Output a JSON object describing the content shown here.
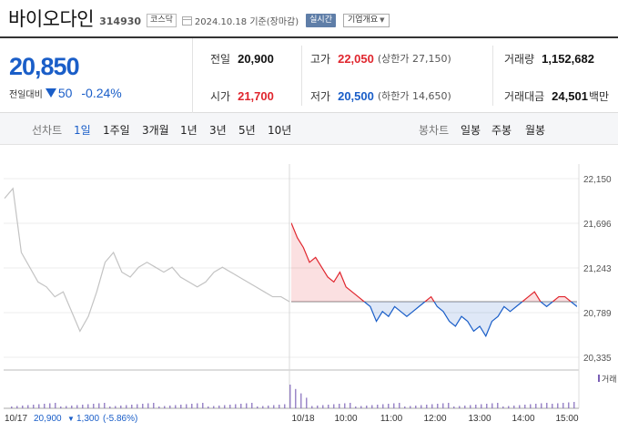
{
  "header": {
    "name": "바이오다인",
    "code": "314930",
    "market_tag": "코스닥",
    "date_text": "2024.10.18 기준(장마감)",
    "realtime_label": "실시간",
    "company_label": "기업개요"
  },
  "summary": {
    "price": "20,850",
    "change_label": "전일대비",
    "change_value": "50",
    "change_pct": "-0.24%",
    "prev_label": "전일",
    "prev_value": "20,900",
    "high_label": "고가",
    "high_value": "22,050",
    "upper_limit": "(상한가 27,150)",
    "volume_label": "거래량",
    "volume_value": "1,152,682",
    "open_label": "시가",
    "open_value": "21,700",
    "low_label": "저가",
    "low_value": "20,500",
    "lower_limit": "(하한가 14,650)",
    "amount_label": "거래대금",
    "amount_value": "24,501",
    "amount_unit": "백만"
  },
  "line_chart_tabs": {
    "label": "선차트",
    "items": [
      "1일",
      "1주일",
      "3개월",
      "1년",
      "3년",
      "5년",
      "10년"
    ],
    "active": "1일"
  },
  "candle_chart_tabs": {
    "label": "봉차트",
    "items": [
      "일봉",
      "주봉",
      "월봉"
    ]
  },
  "chart_data": {
    "type": "line",
    "y_ticks": [
      "22,150",
      "21,696",
      "21,243",
      "20,789",
      "20,335"
    ],
    "ylim": [
      20335,
      22150
    ],
    "baseline": 20900,
    "x_ticks": [
      "10/18",
      "10:00",
      "11:00",
      "12:00",
      "13:00",
      "14:00",
      "15:00"
    ],
    "start_label": "10/17",
    "prev_close_text": "20,900",
    "prev_change_value": "1,300",
    "prev_change_pct": "(-5.86%)",
    "volume_legend": "거래",
    "colors": {
      "up": "#e0262e",
      "down": "#1a5ec8",
      "prev_day": "#c3c3c3",
      "volume": "#7a5fb5"
    },
    "series": [
      {
        "values": [
          21950,
          22050,
          21400,
          21250,
          21100,
          21050,
          20950,
          21000,
          20800,
          20600,
          20750,
          21000,
          21300,
          21400,
          21200,
          21150,
          21250,
          21300,
          21250,
          21200,
          21250,
          21150,
          21100,
          21050,
          21100,
          21200,
          21250,
          21200,
          21150,
          21100,
          21050,
          21000,
          20950,
          20950,
          20900
        ]
      },
      {
        "values": [
          21700,
          21550,
          21450,
          21300,
          21350,
          21250,
          21150,
          21100,
          21200,
          21050,
          21000,
          20950,
          20900,
          20850,
          20700,
          20800,
          20750,
          20850,
          20800,
          20750,
          20800,
          20850,
          20900,
          20950,
          20850,
          20800,
          20700,
          20650,
          20750,
          20700,
          20600,
          20650,
          20550,
          20700,
          20750,
          20850,
          20800,
          20850,
          20900,
          20950,
          21000,
          20900,
          20850,
          20900,
          20950,
          20950,
          20900,
          20850
        ]
      }
    ]
  }
}
